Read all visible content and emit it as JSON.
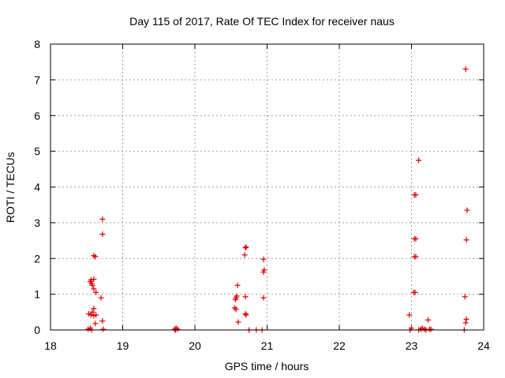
{
  "chart_data": {
    "type": "scatter",
    "title": "Day 115 of 2017, Rate Of TEC Index for receiver naus",
    "xlabel": "GPS time / hours",
    "ylabel": "ROTI / TECUs",
    "xlim": [
      18,
      24
    ],
    "ylim": [
      0,
      8
    ],
    "x_ticks": [
      "18",
      "19",
      "20",
      "21",
      "22",
      "23",
      "24"
    ],
    "y_ticks": [
      "0",
      "1",
      "2",
      "3",
      "4",
      "5",
      "6",
      "7",
      "8"
    ],
    "grid": true,
    "marker": "plus",
    "marker_color": "#e00000",
    "series": [
      {
        "points": [
          [
            18.52,
            0.02
          ],
          [
            18.55,
            0.05
          ],
          [
            18.57,
            0.0
          ],
          [
            18.53,
            0.45
          ],
          [
            18.56,
            0.42
          ],
          [
            18.58,
            0.5
          ],
          [
            18.6,
            0.6
          ],
          [
            18.6,
            0.4
          ],
          [
            18.62,
            0.18
          ],
          [
            18.63,
            0.42
          ],
          [
            18.55,
            1.35
          ],
          [
            18.56,
            1.4
          ],
          [
            18.57,
            1.3
          ],
          [
            18.58,
            1.25
          ],
          [
            18.6,
            1.42
          ],
          [
            18.6,
            1.15
          ],
          [
            18.63,
            1.05
          ],
          [
            18.6,
            2.08
          ],
          [
            18.62,
            2.05
          ],
          [
            18.7,
            0.9
          ],
          [
            18.72,
            0.25
          ],
          [
            18.73,
            0.02
          ],
          [
            18.72,
            2.68
          ],
          [
            18.72,
            3.1
          ],
          [
            19.72,
            0.02
          ],
          [
            19.74,
            0.05
          ],
          [
            19.76,
            0.02
          ],
          [
            19.73,
            0.0
          ],
          [
            20.55,
            0.62
          ],
          [
            20.57,
            0.58
          ],
          [
            20.56,
            0.85
          ],
          [
            20.58,
            0.95
          ],
          [
            20.57,
            0.9
          ],
          [
            20.6,
            0.22
          ],
          [
            20.59,
            1.25
          ],
          [
            20.7,
            0.45
          ],
          [
            20.71,
            0.42
          ],
          [
            20.7,
            0.93
          ],
          [
            20.69,
            2.1
          ],
          [
            20.7,
            2.3
          ],
          [
            20.71,
            2.32
          ],
          [
            20.75,
            0.0
          ],
          [
            20.85,
            0.0
          ],
          [
            20.93,
            0.0
          ],
          [
            20.95,
            0.9
          ],
          [
            20.95,
            1.62
          ],
          [
            20.96,
            1.68
          ],
          [
            20.95,
            1.98
          ],
          [
            22.97,
            0.42
          ],
          [
            22.98,
            0.0
          ],
          [
            23.0,
            0.05
          ],
          [
            23.03,
            1.05
          ],
          [
            23.05,
            1.05
          ],
          [
            23.04,
            2.05
          ],
          [
            23.06,
            2.05
          ],
          [
            23.04,
            2.55
          ],
          [
            23.06,
            2.55
          ],
          [
            23.04,
            3.78
          ],
          [
            23.06,
            3.78
          ],
          [
            23.1,
            4.75
          ],
          [
            23.1,
            0.0
          ],
          [
            23.13,
            0.02
          ],
          [
            23.15,
            0.05
          ],
          [
            23.18,
            0.02
          ],
          [
            23.2,
            0.0
          ],
          [
            23.23,
            0.28
          ],
          [
            23.25,
            0.02
          ],
          [
            23.27,
            0.02
          ],
          [
            23.73,
            0.0
          ],
          [
            23.75,
            0.2
          ],
          [
            23.76,
            0.3
          ],
          [
            23.74,
            0.93
          ],
          [
            23.76,
            2.52
          ],
          [
            23.77,
            3.35
          ],
          [
            23.75,
            7.3
          ]
        ]
      }
    ]
  }
}
